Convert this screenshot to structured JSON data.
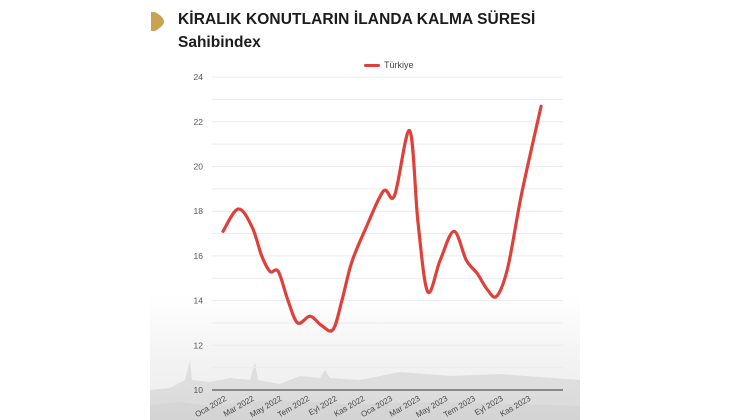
{
  "header": {
    "title": "KİRALIK KONUTLARIN İLANDA KALMA SÜRESİ",
    "subtitle": "Sahibindex",
    "marker_color": "#C9A253"
  },
  "legend": {
    "label": "Türkiye",
    "color": "#E0403A"
  },
  "chart_data": {
    "type": "line",
    "title": "KİRALIK KONUTLARIN İLANDA KALMA SÜRESİ",
    "subtitle": "Sahibindex",
    "xlabel": "",
    "ylabel": "",
    "ylim": [
      10,
      24
    ],
    "yticks": [
      10,
      12,
      14,
      16,
      18,
      20,
      22,
      24
    ],
    "grid": true,
    "minor_grid": true,
    "legend_position": "top",
    "x_tick_labels": [
      "Oca 2022",
      "Mar 2022",
      "May 2022",
      "Tem 2022",
      "Eyl 2022",
      "Kas 2022",
      "Oca 2023",
      "Mar 2023",
      "May 2023",
      "Tem 2023",
      "Eyl 2023",
      "Kas 2023"
    ],
    "x_tick_month_index": [
      0,
      2,
      4,
      6,
      8,
      10,
      12,
      14,
      16,
      18,
      20,
      22
    ],
    "series": [
      {
        "name": "Türkiye",
        "color": "#E0403A",
        "x_month_index": [
          0,
          1.1,
          2.1,
          2.8,
          3.4,
          4.0,
          4.7,
          5.4,
          6.3,
          7.1,
          7.95,
          8.6,
          9.3,
          10.3,
          11.6,
          12.4,
          13.5,
          14.1,
          14.8,
          15.7,
          16.7,
          17.6,
          18.4,
          19.1,
          19.8,
          20.6,
          21.6,
          23.0
        ],
        "values": [
          17.1,
          18.1,
          17.3,
          16.0,
          15.3,
          15.3,
          14.0,
          13.0,
          13.3,
          12.9,
          12.7,
          14.0,
          15.7,
          17.2,
          18.9,
          18.7,
          21.6,
          17.5,
          14.4,
          15.8,
          17.1,
          15.8,
          15.2,
          14.5,
          14.2,
          15.5,
          18.8,
          22.7
        ]
      }
    ]
  }
}
